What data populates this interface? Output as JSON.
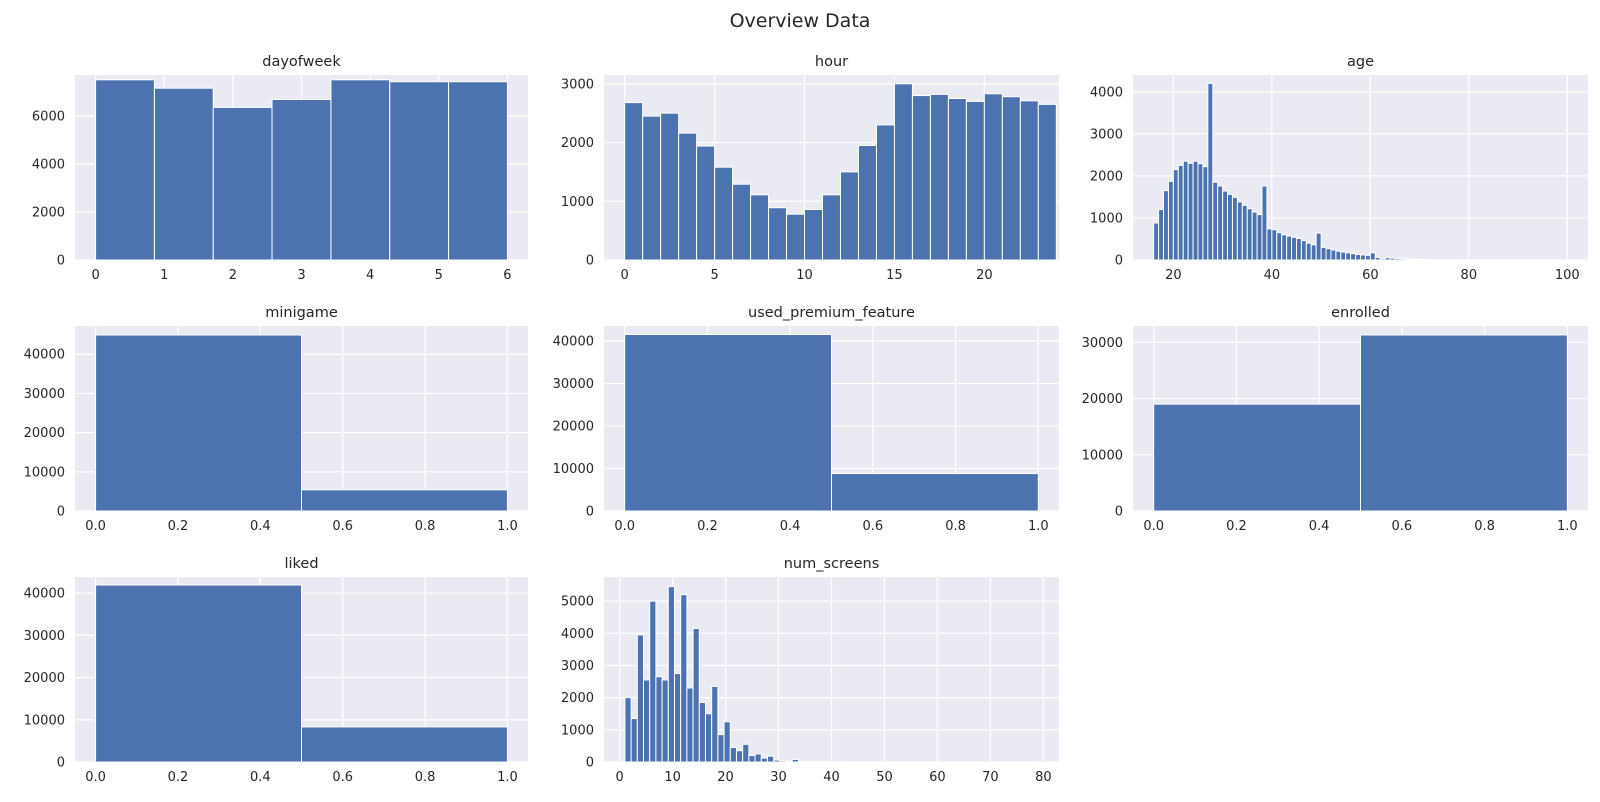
{
  "figure": {
    "title": "Overview Data"
  },
  "chart_data": [
    {
      "type": "bar",
      "title": "dayofweek",
      "grid": true,
      "xlim": [
        -0.3,
        6.3
      ],
      "ylim": [
        0,
        7700
      ],
      "xticks": [
        0,
        1,
        2,
        3,
        4,
        5,
        6
      ],
      "yticks": [
        0,
        2000,
        4000,
        6000
      ],
      "bins": [
        {
          "x0": 0,
          "x1": 0.857,
          "value": 7500
        },
        {
          "x0": 0.857,
          "x1": 1.714,
          "value": 7150
        },
        {
          "x0": 1.714,
          "x1": 2.571,
          "value": 6350
        },
        {
          "x0": 2.571,
          "x1": 3.429,
          "value": 6680
        },
        {
          "x0": 3.429,
          "x1": 4.286,
          "value": 7500
        },
        {
          "x0": 4.286,
          "x1": 5.143,
          "value": 7420
        },
        {
          "x0": 5.143,
          "x1": 6,
          "value": 7420
        }
      ]
    },
    {
      "type": "bar",
      "title": "hour",
      "grid": true,
      "xlim": [
        -1.15,
        24.15
      ],
      "ylim": [
        0,
        3150
      ],
      "xticks": [
        0,
        5,
        10,
        15,
        20
      ],
      "yticks": [
        0,
        1000,
        2000,
        3000
      ],
      "bin_start": 0,
      "bin_width": 1,
      "values": [
        2680,
        2450,
        2500,
        2160,
        1940,
        1580,
        1290,
        1110,
        890,
        780,
        860,
        1110,
        1500,
        1950,
        2300,
        3000,
        2800,
        2820,
        2750,
        2700,
        2830,
        2780,
        2710,
        2650
      ]
    },
    {
      "type": "bar",
      "title": "age",
      "grid": true,
      "xlim": [
        11.8,
        104.2
      ],
      "ylim": [
        0,
        4400
      ],
      "xticks": [
        20,
        40,
        60,
        80,
        100
      ],
      "yticks": [
        0,
        1000,
        2000,
        3000,
        4000
      ],
      "bin_start": 16,
      "bin_width": 1,
      "values": [
        880,
        1200,
        1650,
        1870,
        2150,
        2250,
        2350,
        2300,
        2350,
        2290,
        2220,
        4200,
        1850,
        1760,
        1640,
        1560,
        1490,
        1380,
        1300,
        1220,
        1140,
        1080,
        1760,
        740,
        720,
        650,
        600,
        570,
        540,
        510,
        460,
        400,
        360,
        640,
        300,
        270,
        240,
        210,
        190,
        170,
        150,
        130,
        120,
        110,
        170,
        60,
        30,
        55,
        45,
        35,
        30,
        25,
        20,
        18,
        15,
        12,
        10,
        9,
        8,
        7,
        6,
        5,
        5,
        4,
        3,
        3,
        3,
        2,
        2,
        2,
        2,
        2,
        1,
        1,
        1,
        1,
        1,
        1,
        1,
        1,
        1,
        1,
        1,
        1,
        1
      ]
    },
    {
      "type": "bar",
      "title": "minigame",
      "grid": true,
      "xlim": [
        -0.05,
        1.05
      ],
      "ylim": [
        0,
        47200
      ],
      "xticks": [
        0.0,
        0.2,
        0.4,
        0.6,
        0.8,
        1.0
      ],
      "yticks": [
        0,
        10000,
        20000,
        30000,
        40000
      ],
      "bins": [
        {
          "x0": 0,
          "x1": 0.5,
          "value": 44900
        },
        {
          "x0": 0.5,
          "x1": 1,
          "value": 5400
        }
      ]
    },
    {
      "type": "bar",
      "title": "used_premium_feature",
      "grid": true,
      "xlim": [
        -0.05,
        1.05
      ],
      "ylim": [
        0,
        43500
      ],
      "xticks": [
        0.0,
        0.2,
        0.4,
        0.6,
        0.8,
        1.0
      ],
      "yticks": [
        0,
        10000,
        20000,
        30000,
        40000
      ],
      "bins": [
        {
          "x0": 0,
          "x1": 0.5,
          "value": 41500
        },
        {
          "x0": 0.5,
          "x1": 1,
          "value": 8800
        }
      ]
    },
    {
      "type": "bar",
      "title": "enrolled",
      "grid": true,
      "xlim": [
        -0.05,
        1.05
      ],
      "ylim": [
        0,
        32900
      ],
      "xticks": [
        0.0,
        0.2,
        0.4,
        0.6,
        0.8,
        1.0
      ],
      "yticks": [
        0,
        10000,
        20000,
        30000
      ],
      "bins": [
        {
          "x0": 0,
          "x1": 0.5,
          "value": 19000
        },
        {
          "x0": 0.5,
          "x1": 1,
          "value": 31300
        }
      ]
    },
    {
      "type": "bar",
      "title": "liked",
      "grid": true,
      "xlim": [
        -0.05,
        1.05
      ],
      "ylim": [
        0,
        43800
      ],
      "xticks": [
        0.0,
        0.2,
        0.4,
        0.6,
        0.8,
        1.0
      ],
      "yticks": [
        0,
        10000,
        20000,
        30000,
        40000
      ],
      "bins": [
        {
          "x0": 0,
          "x1": 0.5,
          "value": 41900
        },
        {
          "x0": 0.5,
          "x1": 1,
          "value": 8300
        }
      ]
    },
    {
      "type": "bar",
      "title": "num_screens",
      "grid": true,
      "xlim": [
        -2.95,
        82.95
      ],
      "ylim": [
        0,
        5750
      ],
      "xticks": [
        0,
        10,
        20,
        30,
        40,
        50,
        60,
        70,
        80
      ],
      "yticks": [
        0,
        1000,
        2000,
        3000,
        4000,
        5000
      ],
      "bin_start": 1,
      "bin_width": 1.17,
      "values": [
        2000,
        1350,
        3950,
        2550,
        5000,
        2650,
        2550,
        5450,
        2750,
        5200,
        2300,
        4150,
        1850,
        1500,
        2350,
        850,
        1250,
        450,
        350,
        550,
        200,
        250,
        120,
        180,
        60,
        40,
        30,
        80,
        20,
        15,
        12,
        10,
        8,
        6,
        5,
        5,
        4,
        3,
        3,
        2,
        2,
        2,
        2,
        1,
        1,
        1,
        1,
        1,
        1,
        1,
        1,
        1,
        1,
        1,
        1,
        1,
        1,
        1,
        1,
        1,
        1,
        1,
        1,
        1,
        1,
        1
      ]
    }
  ]
}
